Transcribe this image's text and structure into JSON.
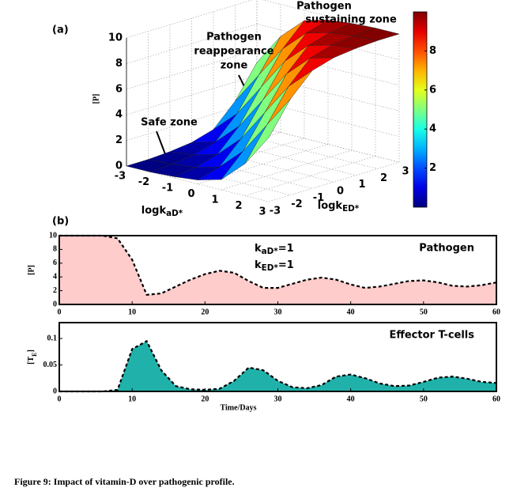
{
  "chart_data": [
    {
      "type": "surface",
      "panel_label": "(a)",
      "x_label": {
        "text": "logk",
        "sub": "aD*"
      },
      "y_label": {
        "text": "logk",
        "sub": "ED*"
      },
      "z_label": "[P]",
      "x": [
        -3,
        -2,
        -1,
        0,
        1,
        2,
        3
      ],
      "y": [
        -3,
        -2,
        -1,
        0,
        1,
        2,
        3
      ],
      "z": [
        [
          0,
          0,
          0.1,
          0.3,
          0.8,
          2.5,
          5
        ],
        [
          0,
          0.1,
          0.3,
          0.8,
          2.5,
          5,
          7.5
        ],
        [
          0.1,
          0.3,
          0.8,
          2.5,
          5,
          7.5,
          9.2
        ],
        [
          0.3,
          0.8,
          2.5,
          5,
          7.5,
          9.2,
          9.7
        ],
        [
          0.8,
          2.5,
          5,
          7.5,
          9.2,
          9.7,
          9.9
        ],
        [
          2.5,
          5,
          7.5,
          9.2,
          9.7,
          9.9,
          10
        ],
        [
          5,
          7.5,
          9.2,
          9.7,
          9.9,
          10,
          10
        ]
      ],
      "xlim": [
        -3,
        3
      ],
      "ylim": [
        -3,
        3
      ],
      "zlim": [
        0,
        10
      ],
      "xticks": [
        -3,
        -2,
        -1,
        0,
        1,
        2,
        3
      ],
      "yticks": [
        -3,
        -2,
        -1,
        0,
        1,
        2,
        3
      ],
      "zticks": [
        0,
        2,
        4,
        6,
        8,
        10
      ],
      "colormap": "jet",
      "colorbar": {
        "clim": [
          0,
          10
        ],
        "ticks": [
          2,
          4,
          6,
          8
        ]
      },
      "annotations": [
        {
          "lines": [
            "Pathogen",
            "sustaining zone"
          ]
        },
        {
          "lines": [
            "Pathogen",
            "reappearance",
            "zone"
          ]
        },
        {
          "lines": [
            "Safe zone"
          ]
        }
      ]
    },
    {
      "type": "area",
      "panel_label": "(b)",
      "title": "Pathogen",
      "ylabel": "[P]",
      "x": [
        0,
        2,
        4,
        6,
        8,
        10,
        12,
        14,
        16,
        18,
        20,
        22,
        24,
        26,
        28,
        30,
        32,
        34,
        36,
        38,
        40,
        42,
        44,
        46,
        48,
        50,
        52,
        54,
        56,
        58,
        60
      ],
      "values": [
        10,
        10,
        10,
        10,
        9.6,
        6.5,
        1.4,
        1.6,
        2.6,
        3.6,
        4.4,
        4.9,
        4.6,
        3.4,
        2.4,
        2.4,
        3.0,
        3.6,
        3.9,
        3.6,
        2.9,
        2.4,
        2.6,
        3.0,
        3.4,
        3.5,
        3.2,
        2.7,
        2.6,
        2.8,
        3.2
      ],
      "color": "#ffcccc",
      "line_color": "#000000",
      "xlim": [
        0,
        60
      ],
      "ylim": [
        0,
        10
      ],
      "xticks": [
        0,
        10,
        20,
        30,
        40,
        50,
        60
      ],
      "yticks": [
        0,
        2,
        4,
        6,
        8,
        10
      ],
      "annotations": [
        {
          "text": "k",
          "sub": "aD*",
          "tail": "=1"
        },
        {
          "text": "k",
          "sub": "ED*",
          "tail": "=1"
        }
      ]
    },
    {
      "type": "area",
      "title": "Effector T-cells",
      "ylabel": {
        "text": "[T",
        "sub": "E",
        "tail": "]"
      },
      "xlabel": "Time/Days",
      "x": [
        0,
        2,
        4,
        6,
        8,
        10,
        12,
        14,
        16,
        18,
        20,
        22,
        24,
        26,
        28,
        30,
        32,
        34,
        36,
        38,
        40,
        42,
        44,
        46,
        48,
        50,
        52,
        54,
        56,
        58,
        60
      ],
      "values": [
        0,
        0,
        0,
        0,
        0.003,
        0.08,
        0.095,
        0.04,
        0.01,
        0.004,
        0.003,
        0.005,
        0.02,
        0.045,
        0.04,
        0.02,
        0.008,
        0.006,
        0.012,
        0.028,
        0.032,
        0.025,
        0.015,
        0.01,
        0.011,
        0.018,
        0.026,
        0.028,
        0.024,
        0.018,
        0.016
      ],
      "color": "#20b2aa",
      "line_color": "#000000",
      "xlim": [
        0,
        60
      ],
      "ylim": [
        0,
        0.13
      ],
      "xticks": [
        0,
        10,
        20,
        30,
        40,
        50,
        60
      ],
      "yticks": [
        0,
        0.05,
        0.1
      ]
    }
  ],
  "caption": "Figure 9: Impact of vitamin-D over pathogenic profile."
}
